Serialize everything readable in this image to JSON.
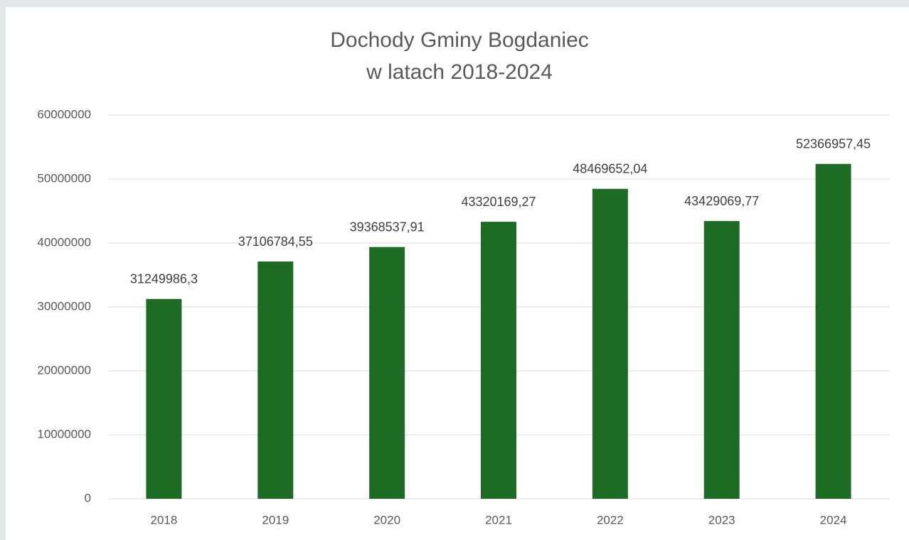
{
  "chart_data": {
    "type": "bar",
    "title": [
      "Dochody Gminy Bogdaniec",
      "w latach 2018-2024"
    ],
    "categories": [
      "2018",
      "2019",
      "2020",
      "2021",
      "2022",
      "2023",
      "2024"
    ],
    "values": [
      31249986.3,
      37106784.55,
      39368537.91,
      43320169.27,
      48469652.04,
      43429069.77,
      52366957.45
    ],
    "value_labels": [
      "31249986,3",
      "37106784,55",
      "39368537,91",
      "43320169,27",
      "48469652,04",
      "43429069,77",
      "52366957,45"
    ],
    "color": "#1e6b24",
    "ylim": [
      0,
      60000000
    ],
    "yticks": [
      0,
      10000000,
      20000000,
      30000000,
      40000000,
      50000000,
      60000000
    ],
    "grid": true
  }
}
